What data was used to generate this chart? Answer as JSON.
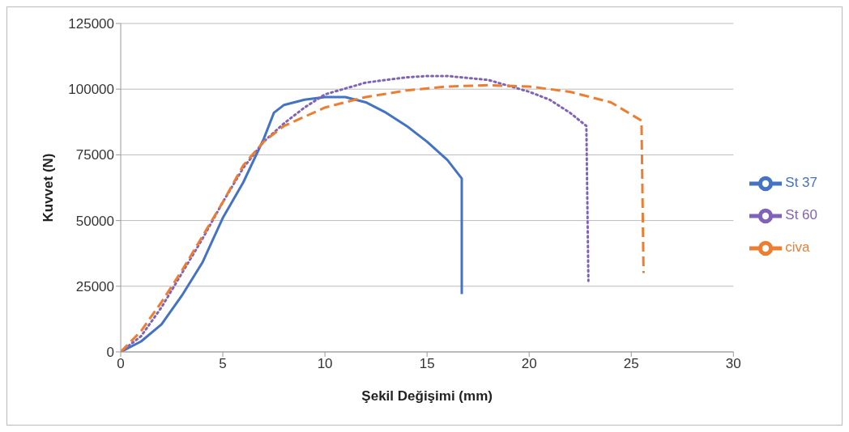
{
  "chart_data": {
    "type": "line",
    "xlabel": "Şekil Değişimi (mm)",
    "ylabel": "Kuvvet (N)",
    "xlim": [
      0,
      30
    ],
    "xticks": [
      0,
      5,
      10,
      15,
      20,
      25,
      30
    ],
    "ylim": [
      0,
      125000
    ],
    "yticks": [
      0,
      25000,
      50000,
      75000,
      100000,
      125000
    ],
    "grid": "y",
    "legend": "right",
    "marker": "none",
    "series": [
      {
        "name": "St 37",
        "color": "#4472c4",
        "line_style": "solid",
        "x": [
          0,
          1,
          2,
          3,
          4,
          5,
          6,
          7,
          7.5,
          8,
          9,
          10,
          11,
          12,
          13,
          14,
          15,
          16,
          16.7,
          16.7
        ],
        "values": [
          0,
          4000,
          10500,
          21500,
          34000,
          51000,
          64500,
          81000,
          91000,
          94000,
          96000,
          97000,
          97000,
          95000,
          91000,
          86000,
          80000,
          73000,
          66000,
          22000
        ]
      },
      {
        "name": "St 60",
        "color": "#7f63b8",
        "line_style": "dotted",
        "x": [
          0,
          1,
          2,
          3,
          4,
          5,
          6,
          7,
          8,
          9,
          10,
          12,
          14,
          15,
          16,
          18,
          20,
          21,
          22,
          22.8,
          22.9
        ],
        "values": [
          0,
          6000,
          17000,
          30000,
          43000,
          57000,
          70000,
          80000,
          87000,
          93000,
          98000,
          102500,
          104500,
          105000,
          105000,
          103500,
          99000,
          96000,
          91000,
          86000,
          27000
        ]
      },
      {
        "name": "civa",
        "color": "#ed7d31",
        "line_style": "dashed",
        "x": [
          0,
          1,
          2,
          3,
          4,
          5,
          6,
          7,
          8,
          10,
          12,
          14,
          16,
          18,
          20,
          22,
          24,
          25.5,
          25.6
        ],
        "values": [
          0,
          8000,
          19000,
          31000,
          44000,
          57000,
          71000,
          80000,
          86000,
          93000,
          97000,
          99500,
          101000,
          101500,
          101000,
          99000,
          95000,
          88000,
          30000
        ]
      }
    ]
  }
}
